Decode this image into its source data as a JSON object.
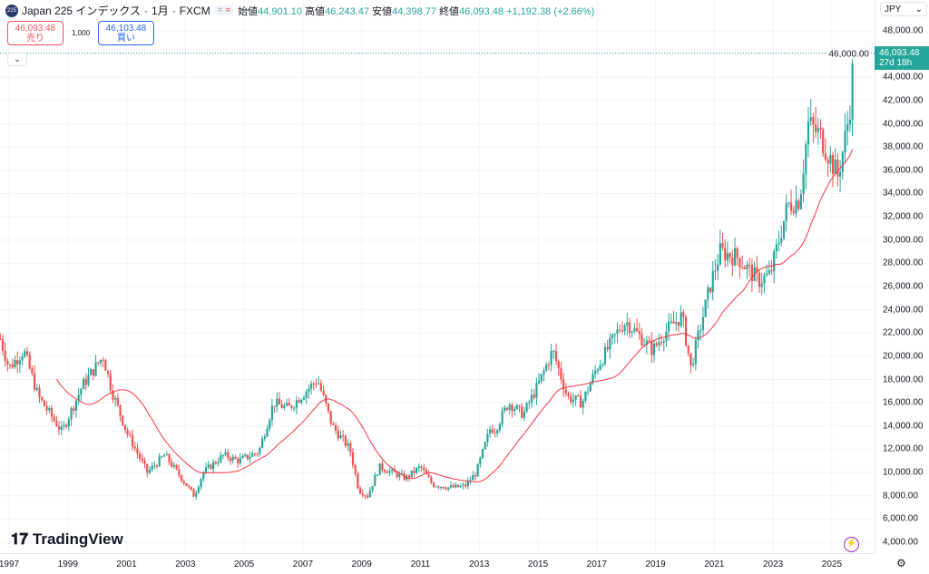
{
  "header": {
    "symbol": "Japan 225 インデックス",
    "interval": "1月",
    "source": "FXCM",
    "badge": "225",
    "open_label": "始値",
    "open": "44,901.10",
    "high_label": "高値",
    "high": "46,243.47",
    "low_label": "安値",
    "low": "44,398.77",
    "close_label": "終値",
    "close": "46,093.48",
    "change": "+1,192.38 (+2.66%)"
  },
  "trade": {
    "sell_price": "46,093.48",
    "sell_label": "売り",
    "quantity": "1,000",
    "buy_price": "46,103.48",
    "buy_label": "買い"
  },
  "currency": "JPY",
  "last_price": {
    "price": "46,093.48",
    "countdown": "27d 18h"
  },
  "brand": "TradingView",
  "colors": {
    "up": "#26a69a",
    "down": "#ef5350",
    "ma": "#f23645",
    "grid": "#f0f3fa"
  },
  "chart_data": {
    "type": "candlestick",
    "title": "Japan 225 · 1M · FXCM",
    "ylim": [
      4000,
      48000
    ],
    "yticks": [
      "48,000.00",
      "46,000.00",
      "44,000.00",
      "42,000.00",
      "40,000.00",
      "38,000.00",
      "36,000.00",
      "34,000.00",
      "32,000.00",
      "30,000.00",
      "28,000.00",
      "26,000.00",
      "24,000.00",
      "22,000.00",
      "20,000.00",
      "18,000.00",
      "16,000.00",
      "14,000.00",
      "12,000.00",
      "10,000.00",
      "8,000.00",
      "6,000.00",
      "4,000.00"
    ],
    "xticks": [
      "1997",
      "1999",
      "2001",
      "2003",
      "2005",
      "2007",
      "2009",
      "2011",
      "2013",
      "2015",
      "2017",
      "2019",
      "2021",
      "2023",
      "2025"
    ],
    "approx_close_path": [
      [
        1996.7,
        21500
      ],
      [
        1997.0,
        19000
      ],
      [
        1997.5,
        20500
      ],
      [
        1998.0,
        16500
      ],
      [
        1998.8,
        13500
      ],
      [
        1999.5,
        17500
      ],
      [
        2000.2,
        20000
      ],
      [
        2000.5,
        17000
      ],
      [
        2001.0,
        13500
      ],
      [
        2001.7,
        10000
      ],
      [
        2002.3,
        11500
      ],
      [
        2003.3,
        8000
      ],
      [
        2003.6,
        10000
      ],
      [
        2004.3,
        11500
      ],
      [
        2004.8,
        11000
      ],
      [
        2005.5,
        11800
      ],
      [
        2006.0,
        16000
      ],
      [
        2006.5,
        15500
      ],
      [
        2007.5,
        18000
      ],
      [
        2008.0,
        14000
      ],
      [
        2008.6,
        12000
      ],
      [
        2008.9,
        8500
      ],
      [
        2009.2,
        8000
      ],
      [
        2009.6,
        10500
      ],
      [
        2010.5,
        9500
      ],
      [
        2011.0,
        10500
      ],
      [
        2011.4,
        9000
      ],
      [
        2012.0,
        8700
      ],
      [
        2012.5,
        8800
      ],
      [
        2012.9,
        10000
      ],
      [
        2013.4,
        14000
      ],
      [
        2013.5,
        13500
      ],
      [
        2014.0,
        16000
      ],
      [
        2014.5,
        15000
      ],
      [
        2015.0,
        17500
      ],
      [
        2015.5,
        20500
      ],
      [
        2016.0,
        16500
      ],
      [
        2016.5,
        16000
      ],
      [
        2017.0,
        19000
      ],
      [
        2017.8,
        22500
      ],
      [
        2018.0,
        23000
      ],
      [
        2018.9,
        20500
      ],
      [
        2019.3,
        22000
      ],
      [
        2019.9,
        23500
      ],
      [
        2020.2,
        19000
      ],
      [
        2020.9,
        26500
      ],
      [
        2021.2,
        29000
      ],
      [
        2021.8,
        28500
      ],
      [
        2022.5,
        26500
      ],
      [
        2022.9,
        27000
      ],
      [
        2023.5,
        33000
      ],
      [
        2023.9,
        33500
      ],
      [
        2024.2,
        40000
      ],
      [
        2024.6,
        39000
      ],
      [
        2025.2,
        35500
      ],
      [
        2025.4,
        38000
      ],
      [
        2025.6,
        41000
      ],
      [
        2025.75,
        46093.48
      ]
    ],
    "moving_average_period": 24
  }
}
